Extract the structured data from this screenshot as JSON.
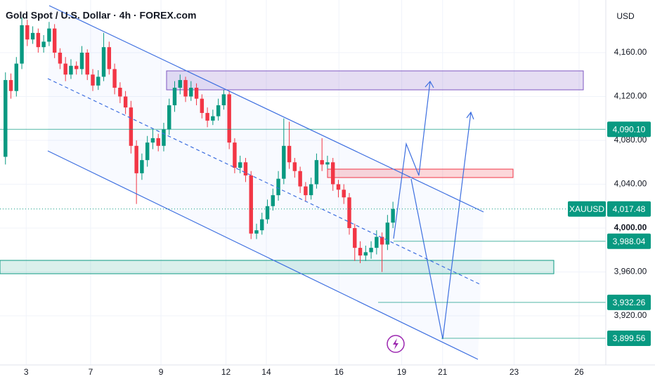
{
  "chart_data": {
    "type": "candlestick",
    "title": "Gold Spot / U.S. Dollar · 4h · FOREX.com",
    "currency": "USD",
    "symbol": "XAUUSD",
    "up_color": "#089981",
    "down_color": "#f23645",
    "grid": true,
    "x": [
      0,
      1,
      2,
      3,
      4,
      5,
      6,
      7,
      8,
      9,
      10,
      11,
      12,
      13,
      14,
      15,
      16,
      17,
      18,
      19,
      20,
      21,
      22,
      23,
      24,
      25,
      26,
      27,
      28,
      29,
      30,
      31,
      32,
      33,
      34,
      35,
      36,
      37,
      38,
      39,
      40,
      41,
      42,
      43,
      44,
      45,
      46,
      47,
      48,
      49,
      50,
      51,
      52,
      53,
      54,
      55,
      56,
      57,
      58,
      59,
      60,
      61,
      62,
      63,
      64,
      65,
      66,
      67,
      68,
      69,
      70,
      71
    ],
    "open": [
      4065,
      4135,
      4125,
      4150,
      4185,
      4172,
      4178,
      4165,
      4170,
      4182,
      4160,
      4150,
      4140,
      4148,
      4145,
      4160,
      4140,
      4130,
      4138,
      4165,
      4145,
      4128,
      4120,
      4110,
      4075,
      4050,
      4062,
      4078,
      4082,
      4075,
      4090,
      4112,
      4128,
      4135,
      4120,
      4128,
      4118,
      4105,
      4098,
      4102,
      4112,
      4122,
      4078,
      4055,
      4060,
      4048,
      3995,
      3998,
      4008,
      4020,
      4030,
      4045,
      4075,
      4060,
      4052,
      4038,
      4030,
      4040,
      4062,
      4058,
      4060,
      4040,
      4035,
      4028,
      4000,
      3982,
      3975,
      3978,
      3982,
      3992,
      3985,
      4005
    ],
    "high": [
      4142,
      4141,
      4156,
      4192,
      4190,
      4184,
      4182,
      4176,
      4188,
      4186,
      4164,
      4156,
      4154,
      4152,
      4166,
      4163,
      4145,
      4144,
      4178,
      4170,
      4150,
      4133,
      4125,
      4116,
      4080,
      4068,
      4084,
      4090,
      4086,
      4096,
      4118,
      4134,
      4140,
      4138,
      4134,
      4132,
      4122,
      4110,
      4108,
      4118,
      4126,
      4125,
      4082,
      4066,
      4064,
      4052,
      4004,
      4014,
      4026,
      4036,
      4052,
      4100,
      4097,
      4064,
      4056,
      4042,
      4046,
      4068,
      4082,
      4066,
      4064,
      4044,
      4040,
      4032,
      4004,
      3988,
      3984,
      3988,
      3998,
      3996,
      4012,
      4024
    ],
    "low": [
      4058,
      4118,
      4120,
      4145,
      4166,
      4168,
      4160,
      4160,
      4166,
      4155,
      4145,
      4134,
      4136,
      4140,
      4140,
      4135,
      4125,
      4126,
      4134,
      4140,
      4122,
      4114,
      4104,
      4068,
      4022,
      4044,
      4056,
      4072,
      4070,
      4070,
      4085,
      4106,
      4122,
      4115,
      4116,
      4112,
      4100,
      4092,
      4094,
      4098,
      4108,
      4072,
      4050,
      4050,
      4042,
      3990,
      3990,
      3994,
      4004,
      4016,
      4025,
      4040,
      4054,
      4046,
      4032,
      4024,
      4026,
      4036,
      4052,
      4054,
      4034,
      4028,
      4022,
      3994,
      3970,
      3968,
      3970,
      3972,
      3976,
      3960,
      3980,
      4000
    ],
    "close": [
      4135,
      4125,
      4150,
      4185,
      4172,
      4178,
      4165,
      4170,
      4182,
      4160,
      4150,
      4140,
      4148,
      4145,
      4160,
      4140,
      4130,
      4138,
      4165,
      4145,
      4128,
      4120,
      4110,
      4075,
      4050,
      4062,
      4078,
      4082,
      4075,
      4090,
      4112,
      4128,
      4135,
      4120,
      4128,
      4118,
      4105,
      4098,
      4102,
      4112,
      4122,
      4078,
      4055,
      4060,
      4048,
      3995,
      3998,
      4008,
      4020,
      4030,
      4045,
      4075,
      4060,
      4052,
      4038,
      4030,
      4040,
      4062,
      4058,
      4060,
      4040,
      4035,
      4028,
      4000,
      3982,
      3975,
      3978,
      3982,
      3992,
      3985,
      4005,
      4017.48
    ],
    "xlim": [
      -1,
      110
    ],
    "xticks": [
      {
        "value": 3.8,
        "label": "3"
      },
      {
        "value": 15.6,
        "label": "7"
      },
      {
        "value": 28.5,
        "label": "9"
      },
      {
        "value": 40.4,
        "label": "12"
      },
      {
        "value": 47.8,
        "label": "14"
      },
      {
        "value": 61.1,
        "label": "16"
      },
      {
        "value": 72.6,
        "label": "19"
      },
      {
        "value": 80.1,
        "label": "21"
      },
      {
        "value": 93.2,
        "label": "23"
      },
      {
        "value": 105.1,
        "label": "26"
      }
    ],
    "ylim": [
      3875.2,
      4208
    ],
    "yticks": [
      {
        "value": 3920,
        "label": "3,920.00"
      },
      {
        "value": 3960,
        "label": "3,960.00"
      },
      {
        "value": 4000,
        "label": "4,000.00"
      },
      {
        "value": 4040,
        "label": "4,040.00"
      },
      {
        "value": 4080,
        "label": "4,080.00"
      },
      {
        "value": 4120,
        "label": "4,120.00"
      },
      {
        "value": 4160,
        "label": "4,160.00"
      }
    ],
    "price_lines": [
      {
        "value": 4090.1,
        "label": "4,090.10"
      },
      {
        "value": 4017.48,
        "label": "4,017.48"
      },
      {
        "value": 3988.04,
        "label": "3,988.04"
      },
      {
        "value": 3932.26,
        "label": "3,932.26"
      },
      {
        "value": 3899.56,
        "label": "3,899.56"
      }
    ]
  }
}
